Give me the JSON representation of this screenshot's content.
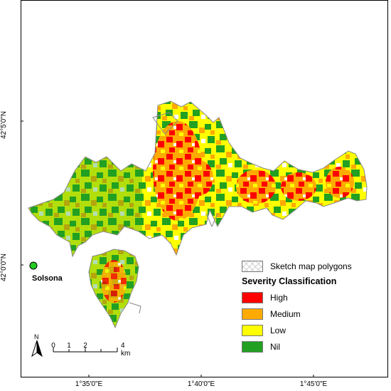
{
  "map": {
    "lat_labels": [
      "42°5'0\"N",
      "42°0'0\"N"
    ],
    "lon_labels": [
      "1°35'0\"E",
      "1°40'0\"E",
      "1°45'0\"E"
    ],
    "place": {
      "name": "Solsona"
    },
    "north_label": "N",
    "scale": {
      "ticks": [
        "0",
        "1",
        "2",
        "4 km"
      ]
    },
    "colors": {
      "high": "#ff0000",
      "medium": "#ffaa00",
      "low": "#ffff00",
      "nil": "#22a022",
      "outline": "#888888"
    }
  },
  "legend": {
    "polygons_label": "Sketch map polygons",
    "title": "Severity Classification",
    "items": [
      {
        "key": "high",
        "label": "High",
        "color": "#ff0000"
      },
      {
        "key": "medium",
        "label": "Medium",
        "color": "#ffaa00"
      },
      {
        "key": "low",
        "label": "Low",
        "color": "#ffff00"
      },
      {
        "key": "nil",
        "label": "Nil",
        "color": "#22a022"
      }
    ]
  }
}
